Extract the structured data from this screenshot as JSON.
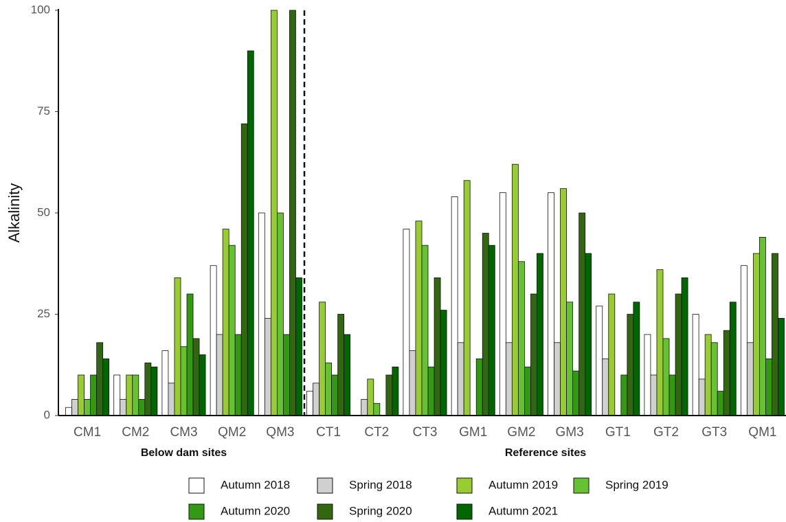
{
  "chart_data": {
    "type": "bar",
    "y_label": "Alkalinity",
    "categories": [
      "CM1",
      "CM2",
      "CM3",
      "QM2",
      "QM3",
      "CT1",
      "CT2",
      "CT3",
      "GM1",
      "GM2",
      "GM3",
      "GT1",
      "GT2",
      "GT3",
      "QM1"
    ],
    "groups": [
      {
        "label": "Below dam sites",
        "categories": [
          "CM1",
          "CM2",
          "CM3",
          "QM2",
          "QM3"
        ]
      },
      {
        "label": "Reference sites",
        "categories": [
          "CT1",
          "CT2",
          "CT3",
          "GM1",
          "GM2",
          "GM3",
          "GT1",
          "GT2",
          "GT3",
          "QM1"
        ]
      }
    ],
    "series": [
      {
        "name": "Autumn 2018",
        "color": "#ffffff",
        "values": [
          2,
          10,
          16,
          37,
          50,
          6,
          null,
          46,
          54,
          55,
          55,
          27,
          20,
          25,
          37
        ]
      },
      {
        "name": "Spring 2018",
        "color": "#d0d0d0",
        "values": [
          4,
          4,
          8,
          20,
          24,
          8,
          4,
          16,
          18,
          18,
          18,
          14,
          10,
          9,
          18
        ]
      },
      {
        "name": "Autumn 2019",
        "color": "#99cc33",
        "values": [
          10,
          10,
          34,
          46,
          100,
          28,
          9,
          48,
          58,
          62,
          56,
          30,
          36,
          20,
          40
        ]
      },
      {
        "name": "Spring 2019",
        "color": "#66c233",
        "values": [
          4,
          10,
          17,
          42,
          50,
          13,
          3,
          42,
          null,
          38,
          28,
          null,
          19,
          18,
          44
        ]
      },
      {
        "name": "Autumn 2020",
        "color": "#339913",
        "values": [
          10,
          4,
          30,
          20,
          20,
          10,
          null,
          12,
          14,
          12,
          11,
          10,
          10,
          6,
          14
        ]
      },
      {
        "name": "Spring 2020",
        "color": "#336611",
        "values": [
          18,
          13,
          19,
          72,
          100,
          25,
          10,
          34,
          45,
          30,
          50,
          25,
          30,
          21,
          40
        ]
      },
      {
        "name": "Autumn 2021",
        "color": "#006600",
        "values": [
          14,
          12,
          15,
          90,
          34,
          20,
          12,
          26,
          42,
          40,
          40,
          28,
          34,
          28,
          24
        ]
      }
    ],
    "ylim": [
      0,
      100
    ],
    "yticks": [
      0,
      25,
      50,
      75,
      100
    ],
    "grid": false,
    "legend": "bottom"
  }
}
